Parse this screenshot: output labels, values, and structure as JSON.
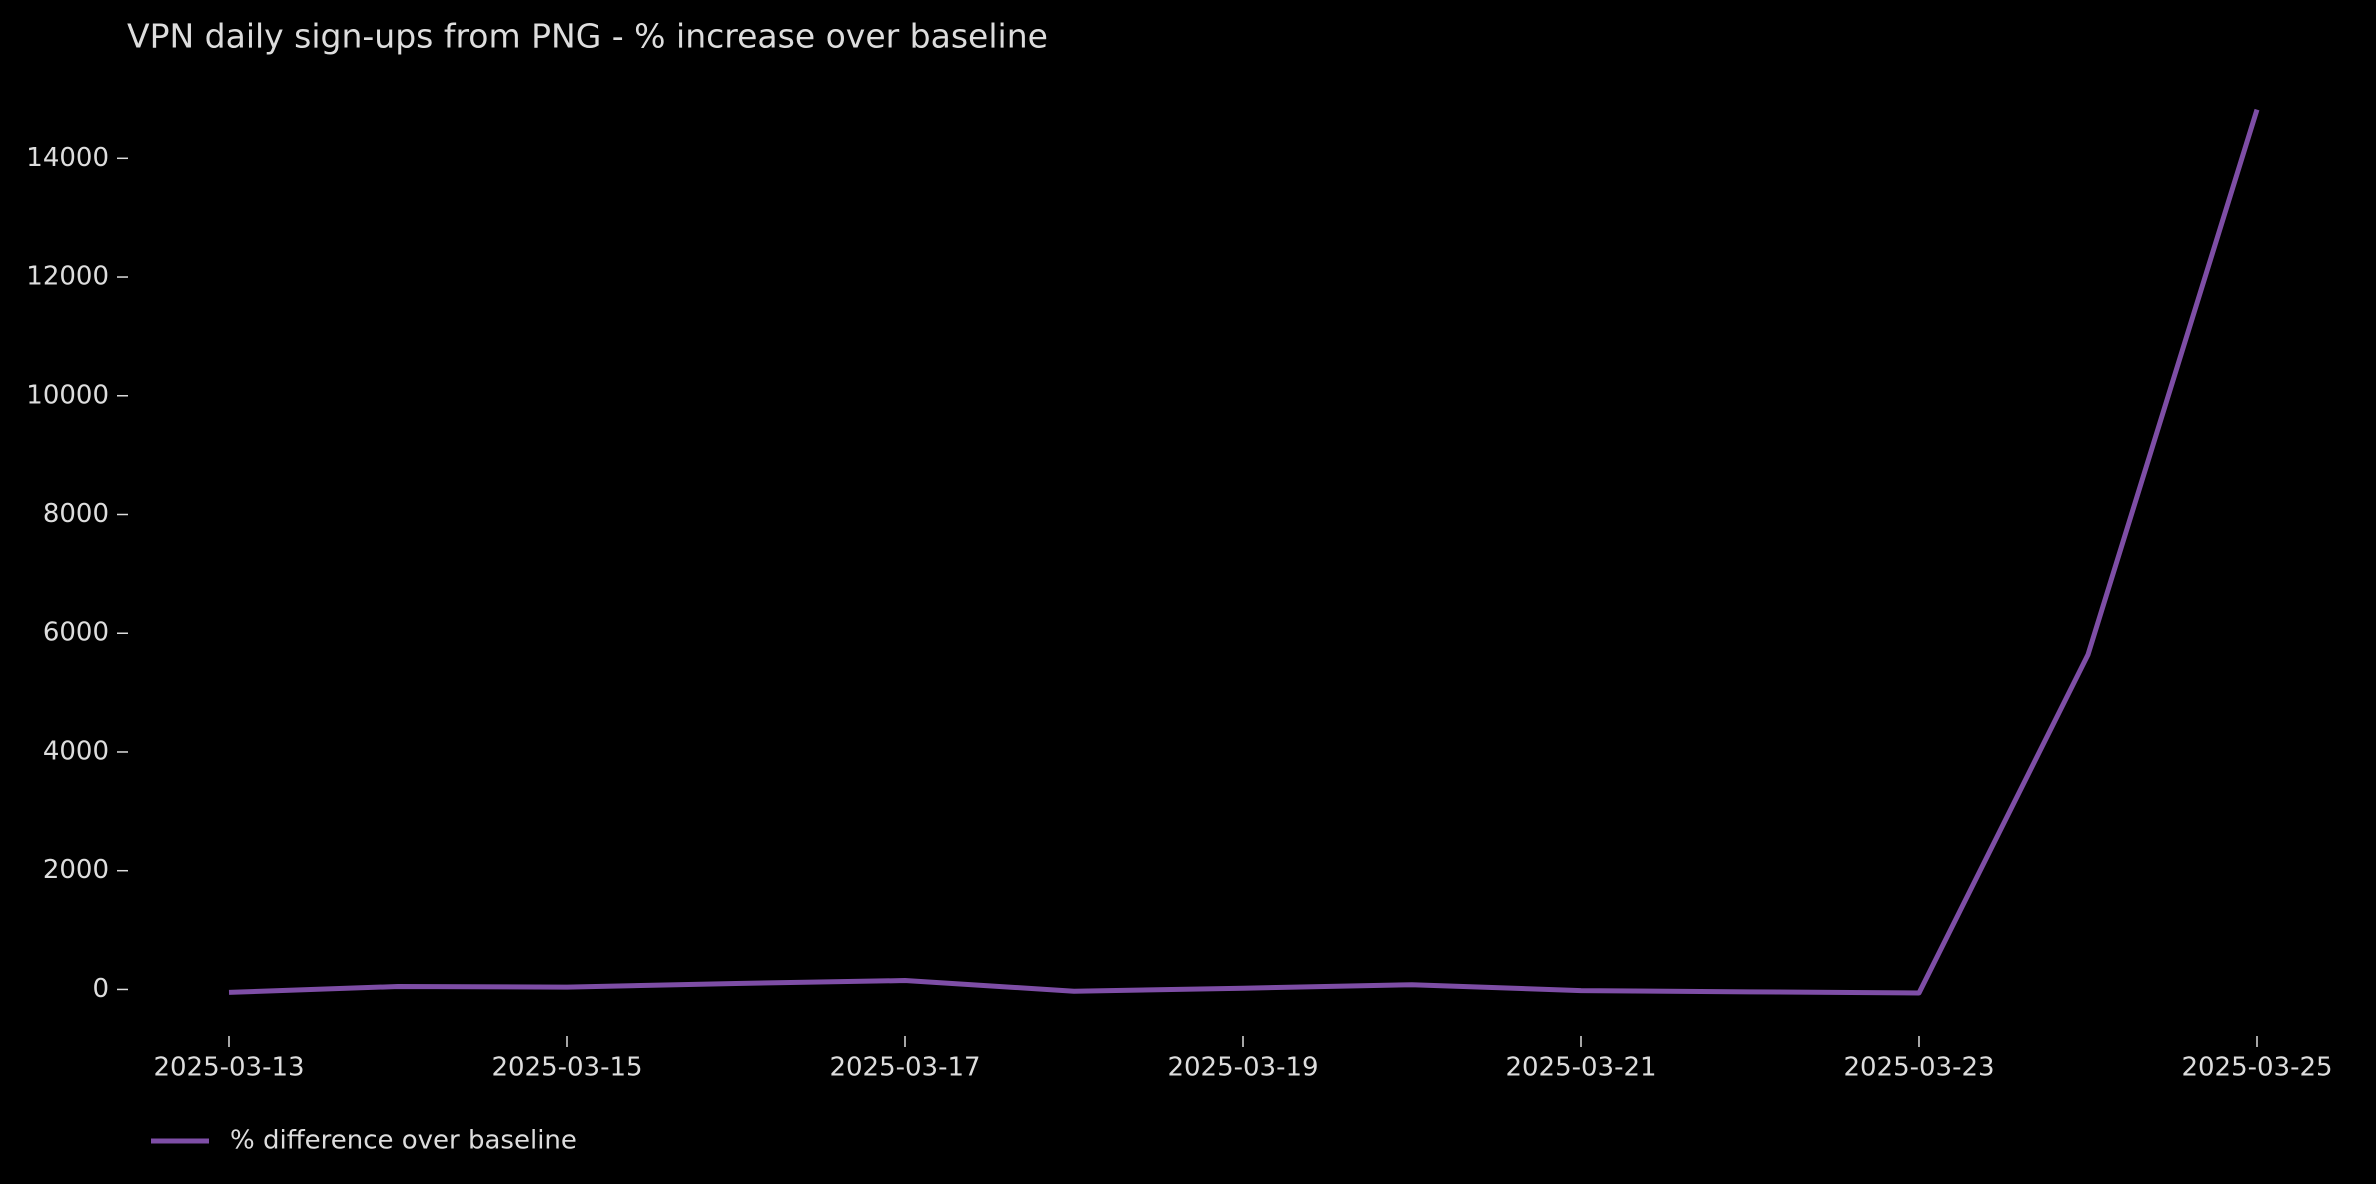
{
  "chart_data": {
    "type": "line",
    "title": "VPN daily sign-ups from PNG - % increase over baseline",
    "x": [
      "2025-03-13",
      "2025-03-14",
      "2025-03-15",
      "2025-03-16",
      "2025-03-17",
      "2025-03-18",
      "2025-03-19",
      "2025-03-20",
      "2025-03-21",
      "2025-03-22",
      "2025-03-23",
      "2025-03-24",
      "2025-03-25"
    ],
    "series": [
      {
        "name": "% difference over baseline",
        "color": "#7e4ea6",
        "values": [
          -50,
          50,
          40,
          100,
          150,
          -30,
          20,
          80,
          -20,
          -40,
          -60,
          5640,
          14820
        ]
      }
    ],
    "xlim": [
      "2025-03-13",
      "2025-03-25"
    ],
    "xticks": [
      "2025-03-13",
      "2025-03-15",
      "2025-03-17",
      "2025-03-19",
      "2025-03-21",
      "2025-03-23",
      "2025-03-25"
    ],
    "ylim": [
      -700,
      15100
    ],
    "yticks": [
      0,
      2000,
      4000,
      6000,
      8000,
      10000,
      12000,
      14000
    ],
    "grid": false,
    "legend": "lower left"
  }
}
